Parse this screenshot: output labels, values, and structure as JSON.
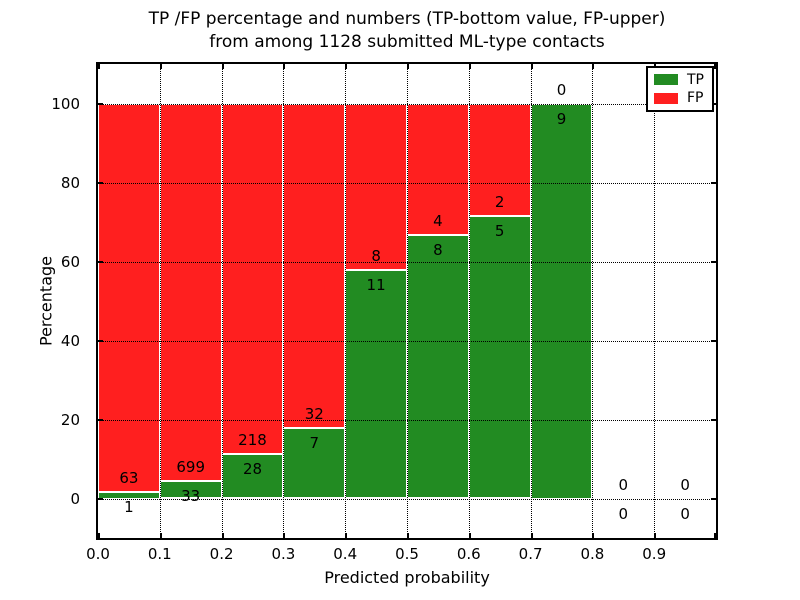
{
  "chart_data": {
    "type": "bar",
    "variant": "stacked-percentage",
    "title_line1": "TP /FP percentage and numbers (TP-bottom value, FP-upper)",
    "title_line2": "from among 1128 submitted ML-type contacts",
    "xlabel": "Predicted probability",
    "ylabel": "Percentage",
    "xlim": [
      0.0,
      1.0
    ],
    "ylim": [
      -10,
      110
    ],
    "x_tick_labels": [
      "0.0",
      "0.1",
      "0.2",
      "0.3",
      "0.4",
      "0.5",
      "0.6",
      "0.7",
      "0.8",
      "0.9"
    ],
    "y_ticks": [
      0,
      20,
      40,
      60,
      80,
      100
    ],
    "grid": {
      "visible": true,
      "style": "dotted",
      "color": "#000000"
    },
    "total_contacts": 1128,
    "bins": [
      {
        "range": [
          0.0,
          0.1
        ],
        "tp": 1,
        "fp": 63,
        "tp_pct": 1.6
      },
      {
        "range": [
          0.1,
          0.2
        ],
        "tp": 33,
        "fp": 699,
        "tp_pct": 4.5
      },
      {
        "range": [
          0.2,
          0.3
        ],
        "tp": 28,
        "fp": 218,
        "tp_pct": 11.4
      },
      {
        "range": [
          0.3,
          0.4
        ],
        "tp": 7,
        "fp": 32,
        "tp_pct": 17.9
      },
      {
        "range": [
          0.4,
          0.5
        ],
        "tp": 11,
        "fp": 8,
        "tp_pct": 57.9
      },
      {
        "range": [
          0.5,
          0.6
        ],
        "tp": 8,
        "fp": 4,
        "tp_pct": 66.7
      },
      {
        "range": [
          0.6,
          0.7
        ],
        "tp": 5,
        "fp": 2,
        "tp_pct": 71.4
      },
      {
        "range": [
          0.7,
          0.8
        ],
        "tp": 9,
        "fp": 0,
        "tp_pct": 100.0
      },
      {
        "range": [
          0.8,
          0.9
        ],
        "tp": 0,
        "fp": 0,
        "tp_pct": null
      },
      {
        "range": [
          0.9,
          1.0
        ],
        "tp": 0,
        "fp": 0,
        "tp_pct": null
      }
    ],
    "colors": {
      "tp": "#228b22",
      "fp": "#ff1f1f"
    },
    "legend": {
      "position": "upper right",
      "entries": [
        {
          "label": "TP",
          "color": "#228b22"
        },
        {
          "label": "FP",
          "color": "#ff1f1f"
        }
      ]
    }
  }
}
